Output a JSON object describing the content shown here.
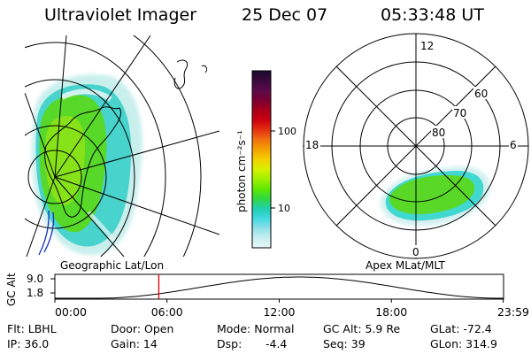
{
  "header": {
    "instrument": "Ultraviolet Imager",
    "date": "25 Dec 07",
    "time": "05:33:48 UT"
  },
  "left_panel": {
    "label": "Geographic Lat/Lon"
  },
  "right_panel": {
    "label": "Apex MLat/MLT",
    "mlt_labels": [
      "12",
      "18",
      "6",
      "0"
    ],
    "mlat_labels": [
      "60",
      "70",
      "80"
    ]
  },
  "colorbar": {
    "unit_label": "photon cm⁻²s⁻¹",
    "tick_labels": [
      "100",
      "10"
    ],
    "colors": [
      "#1a0a2e",
      "#3b0a3c",
      "#5c0a4a",
      "#7a0032",
      "#a8001a",
      "#cc0010",
      "#e43010",
      "#f07010",
      "#f4a000",
      "#f4d000",
      "#d8f000",
      "#a0f000",
      "#60e800",
      "#30d840",
      "#20d0b0",
      "#40d8e0",
      "#90e0e8",
      "#c8eef0",
      "#e8f6f8"
    ]
  },
  "altitude_plot": {
    "y_label": "GC Alt",
    "y_ticks": [
      "9.0",
      "1.8"
    ],
    "x_ticks": [
      "00:00",
      "06:00",
      "12:00",
      "18:00",
      "23:59"
    ],
    "marker_time_hours": 5.56
  },
  "info": {
    "filter": "Flt: LBHL",
    "door": "Door: Open",
    "mode": "Mode: Normal",
    "gc_alt": "GC Alt: 5.9 Re",
    "glat": "GLat: -72.4",
    "ip": "IP: 36.0",
    "gain": "Gain: 14",
    "dsp_label": "Dsp:",
    "dsp_value": "-4.4",
    "seq": "Seq: 39",
    "glon": "GLon: 314.9"
  }
}
